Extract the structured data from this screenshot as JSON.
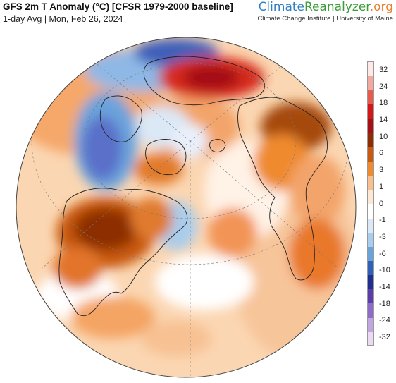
{
  "header": {
    "title": "GFS 2m T Anomaly (°C) [CFSR 1979-2000 baseline]",
    "subtitle": "1-day Avg | Mon, Feb 26, 2024"
  },
  "brand": {
    "part1": "Climate",
    "part2": "Reanalyzer",
    "part3": ".org",
    "affiliation": "Climate Change Institute | University of Maine"
  },
  "legend": {
    "labels": [
      "32",
      "24",
      "18",
      "14",
      "10",
      "6",
      "3",
      "1",
      "0",
      "-1",
      "-3",
      "-6",
      "-10",
      "-14",
      "-18",
      "-24",
      "-32"
    ],
    "colors": [
      "#fde9e6",
      "#f4a9a0",
      "#e85a4e",
      "#d41616",
      "#a50f15",
      "#8c2d04",
      "#c8590e",
      "#ef8a2e",
      "#f9c08e",
      "#fde8d4",
      "#ffffff",
      "#dbe8f6",
      "#a9cdec",
      "#6aa3dc",
      "#2f5fb7",
      "#1f2f8f",
      "#5a3da8",
      "#8f6bc9",
      "#c2a6df",
      "#eadbf2"
    ]
  },
  "map": {
    "projection": "orthographic",
    "date": "Mon, Feb 26, 2024"
  }
}
